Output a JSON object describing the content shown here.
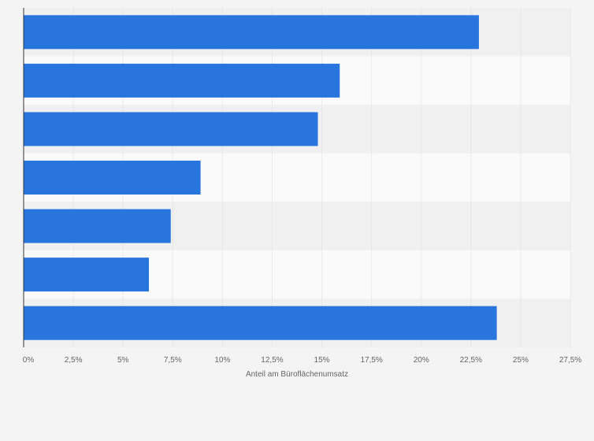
{
  "chart_data": {
    "type": "bar",
    "orientation": "horizontal",
    "categories": [
      "",
      "",
      "",
      "",
      "",
      "",
      ""
    ],
    "values": [
      22.9,
      15.9,
      14.8,
      8.9,
      7.4,
      6.3,
      23.8
    ],
    "xlabel": "Anteil am Büroflächenumsatz",
    "ylabel": "",
    "xlim": [
      0,
      27.5
    ],
    "ticks": [
      0,
      2.5,
      5,
      7.5,
      10,
      12.5,
      15,
      17.5,
      20,
      22.5,
      25,
      27.5
    ],
    "tick_labels": [
      "0%",
      "2,5%",
      "5%",
      "7,5%",
      "10%",
      "12,5%",
      "15%",
      "17,5%",
      "20%",
      "22,5%",
      "25%",
      "27,5%"
    ],
    "grid": true,
    "legend": "none",
    "colors": {
      "bar": "#2876dd",
      "background": "#f4f4f4",
      "band_light": "#fafafa",
      "band_dark": "#f0f0f0",
      "grid": "#dddddd",
      "axis": "#333333",
      "text": "#666666"
    }
  }
}
